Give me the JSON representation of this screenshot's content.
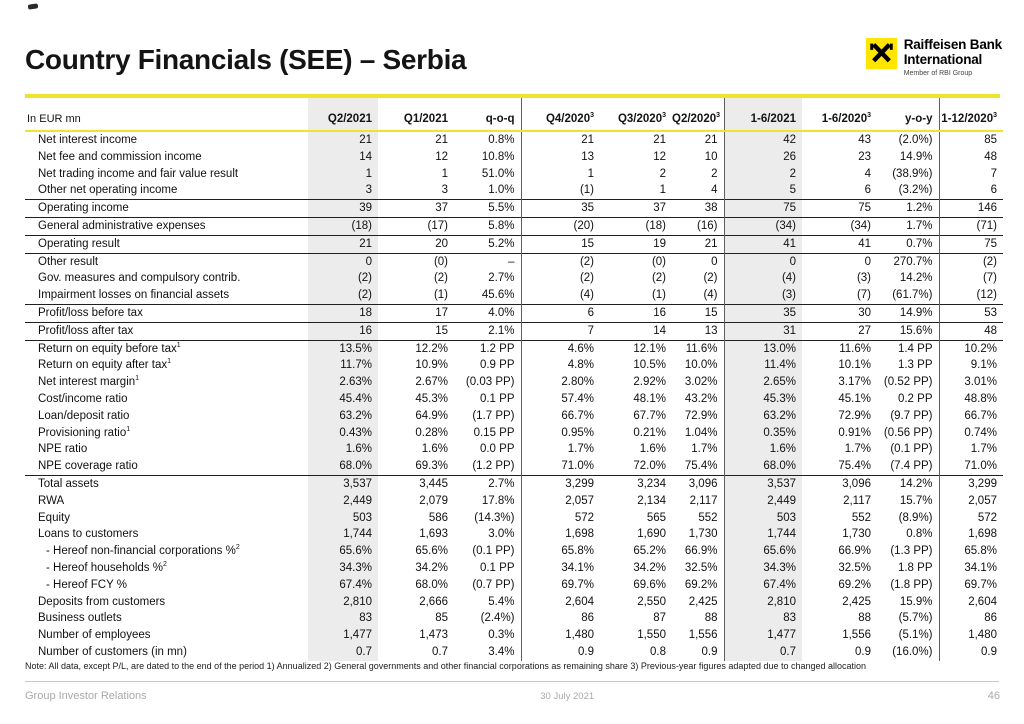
{
  "page": {
    "title": "Country Financials (SEE) – Serbia",
    "logo": {
      "line1": "Raiffeisen Bank",
      "line2": "International",
      "line3": "Member of RBI Group",
      "brand_yellow": "#FFE500"
    },
    "note": "Note: All data, except P/L, are dated to the end of the period 1) Annualized  2) General governments and other financial corporations as remaining share  3) Previous-year figures adapted due to changed allocation",
    "footer": {
      "left": "Group Investor Relations",
      "date": "30 July 2021",
      "page_number": "46"
    }
  },
  "colors": {
    "accent_yellow": "#EFE32E",
    "column_highlight_gray": "#ECECEC"
  },
  "table": {
    "unit_label": "In EUR mn",
    "columns": [
      {
        "label": "Q2/2021",
        "sup": ""
      },
      {
        "label": "Q1/2021",
        "sup": ""
      },
      {
        "label": "q-o-q",
        "sup": ""
      },
      {
        "label": "Q4/2020",
        "sup": "3"
      },
      {
        "label": "Q3/2020",
        "sup": "3"
      },
      {
        "label": "Q2/2020",
        "sup": "3"
      },
      {
        "label": "1-6/2021",
        "sup": ""
      },
      {
        "label": "1-6/2020",
        "sup": "3"
      },
      {
        "label": "y-o-y",
        "sup": ""
      },
      {
        "label": "1-12/2020",
        "sup": "3"
      }
    ],
    "rows": [
      {
        "label": "Net interest income",
        "values": [
          "21",
          "21",
          "0.8%",
          "21",
          "21",
          "21",
          "42",
          "43",
          "(2.0%)",
          "85"
        ]
      },
      {
        "label": "Net fee and commission income",
        "values": [
          "14",
          "12",
          "10.8%",
          "13",
          "12",
          "10",
          "26",
          "23",
          "14.9%",
          "48"
        ]
      },
      {
        "label": "Net trading income and fair value result",
        "values": [
          "1",
          "1",
          "51.0%",
          "1",
          "2",
          "2",
          "2",
          "4",
          "(38.9%)",
          "7"
        ]
      },
      {
        "label": "Other net operating income",
        "values": [
          "3",
          "3",
          "1.0%",
          "(1)",
          "1",
          "4",
          "5",
          "6",
          "(3.2%)",
          "6"
        ]
      },
      {
        "label": "Operating income",
        "bt": true,
        "values": [
          "39",
          "37",
          "5.5%",
          "35",
          "37",
          "38",
          "75",
          "75",
          "1.2%",
          "146"
        ]
      },
      {
        "label": "General administrative expenses",
        "bt": true,
        "values": [
          "(18)",
          "(17)",
          "5.8%",
          "(20)",
          "(18)",
          "(16)",
          "(34)",
          "(34)",
          "1.7%",
          "(71)"
        ]
      },
      {
        "label": "Operating result",
        "bt": true,
        "values": [
          "21",
          "20",
          "5.2%",
          "15",
          "19",
          "21",
          "41",
          "41",
          "0.7%",
          "75"
        ]
      },
      {
        "label": "Other result",
        "bt": true,
        "values": [
          "0",
          "(0)",
          "–",
          "(2)",
          "(0)",
          "0",
          "0",
          "0",
          "270.7%",
          "(2)"
        ]
      },
      {
        "label": "Gov. measures and compulsory contrib.",
        "values": [
          "(2)",
          "(2)",
          "2.7%",
          "(2)",
          "(2)",
          "(2)",
          "(4)",
          "(3)",
          "14.2%",
          "(7)"
        ]
      },
      {
        "label": "Impairment losses on financial assets",
        "values": [
          "(2)",
          "(1)",
          "45.6%",
          "(4)",
          "(1)",
          "(4)",
          "(3)",
          "(7)",
          "(61.7%)",
          "(12)"
        ]
      },
      {
        "label": "Profit/loss before tax",
        "bt": true,
        "values": [
          "18",
          "17",
          "4.0%",
          "6",
          "16",
          "15",
          "35",
          "30",
          "14.9%",
          "53"
        ]
      },
      {
        "label": "Profit/loss after tax",
        "bt": true,
        "values": [
          "16",
          "15",
          "2.1%",
          "7",
          "14",
          "13",
          "31",
          "27",
          "15.6%",
          "48"
        ]
      },
      {
        "label": "Return on equity before tax",
        "sup": "1",
        "bt": true,
        "values": [
          "13.5%",
          "12.2%",
          "1.2 PP",
          "4.6%",
          "12.1%",
          "11.6%",
          "13.0%",
          "11.6%",
          "1.4 PP",
          "10.2%"
        ]
      },
      {
        "label": "Return on equity after tax",
        "sup": "1",
        "values": [
          "11.7%",
          "10.9%",
          "0.9 PP",
          "4.8%",
          "10.5%",
          "10.0%",
          "11.4%",
          "10.1%",
          "1.3 PP",
          "9.1%"
        ]
      },
      {
        "label": "Net interest margin",
        "sup": "1",
        "values": [
          "2.63%",
          "2.67%",
          "(0.03 PP)",
          "2.80%",
          "2.92%",
          "3.02%",
          "2.65%",
          "3.17%",
          "(0.52 PP)",
          "3.01%"
        ]
      },
      {
        "label": "Cost/income ratio",
        "values": [
          "45.4%",
          "45.3%",
          "0.1 PP",
          "57.4%",
          "48.1%",
          "43.2%",
          "45.3%",
          "45.1%",
          "0.2 PP",
          "48.8%"
        ]
      },
      {
        "label": "Loan/deposit ratio",
        "values": [
          "63.2%",
          "64.9%",
          "(1.7 PP)",
          "66.7%",
          "67.7%",
          "72.9%",
          "63.2%",
          "72.9%",
          "(9.7 PP)",
          "66.7%"
        ]
      },
      {
        "label": "Provisioning ratio",
        "sup": "1",
        "values": [
          "0.43%",
          "0.28%",
          "0.15 PP",
          "0.95%",
          "0.21%",
          "1.04%",
          "0.35%",
          "0.91%",
          "(0.56 PP)",
          "0.74%"
        ]
      },
      {
        "label": "NPE ratio",
        "values": [
          "1.6%",
          "1.6%",
          "0.0 PP",
          "1.7%",
          "1.6%",
          "1.7%",
          "1.6%",
          "1.7%",
          "(0.1 PP)",
          "1.7%"
        ]
      },
      {
        "label": "NPE coverage ratio",
        "values": [
          "68.0%",
          "69.3%",
          "(1.2 PP)",
          "71.0%",
          "72.0%",
          "75.4%",
          "68.0%",
          "75.4%",
          "(7.4 PP)",
          "71.0%"
        ]
      },
      {
        "label": "Total assets",
        "bt": true,
        "values": [
          "3,537",
          "3,445",
          "2.7%",
          "3,299",
          "3,234",
          "3,096",
          "3,537",
          "3,096",
          "14.2%",
          "3,299"
        ]
      },
      {
        "label": "RWA",
        "values": [
          "2,449",
          "2,079",
          "17.8%",
          "2,057",
          "2,134",
          "2,117",
          "2,449",
          "2,117",
          "15.7%",
          "2,057"
        ]
      },
      {
        "label": "Equity",
        "values": [
          "503",
          "586",
          "(14.3%)",
          "572",
          "565",
          "552",
          "503",
          "552",
          "(8.9%)",
          "572"
        ]
      },
      {
        "label": "Loans to customers",
        "values": [
          "1,744",
          "1,693",
          "3.0%",
          "1,698",
          "1,690",
          "1,730",
          "1,744",
          "1,730",
          "0.8%",
          "1,698"
        ]
      },
      {
        "label": "- Hereof non-financial corporations %",
        "sup": "2",
        "indent": true,
        "values": [
          "65.6%",
          "65.6%",
          "(0.1 PP)",
          "65.8%",
          "65.2%",
          "66.9%",
          "65.6%",
          "66.9%",
          "(1.3 PP)",
          "65.8%"
        ]
      },
      {
        "label": "- Hereof households %",
        "sup": "2",
        "indent": true,
        "values": [
          "34.3%",
          "34.2%",
          "0.1 PP",
          "34.1%",
          "34.2%",
          "32.5%",
          "34.3%",
          "32.5%",
          "1.8 PP",
          "34.1%"
        ]
      },
      {
        "label": "- Hereof FCY %",
        "indent": true,
        "values": [
          "67.4%",
          "68.0%",
          "(0.7 PP)",
          "69.7%",
          "69.6%",
          "69.2%",
          "67.4%",
          "69.2%",
          "(1.8 PP)",
          "69.7%"
        ]
      },
      {
        "label": "Deposits from customers",
        "values": [
          "2,810",
          "2,666",
          "5.4%",
          "2,604",
          "2,550",
          "2,425",
          "2,810",
          "2,425",
          "15.9%",
          "2,604"
        ]
      },
      {
        "label": "Business outlets",
        "values": [
          "83",
          "85",
          "(2.4%)",
          "86",
          "87",
          "88",
          "83",
          "88",
          "(5.7%)",
          "86"
        ]
      },
      {
        "label": "Number of employees",
        "values": [
          "1,477",
          "1,473",
          "0.3%",
          "1,480",
          "1,550",
          "1,556",
          "1,477",
          "1,556",
          "(5.1%)",
          "1,480"
        ]
      },
      {
        "label": "Number of customers (in mn)",
        "values": [
          "0.7",
          "0.7",
          "3.4%",
          "0.9",
          "0.8",
          "0.9",
          "0.7",
          "0.9",
          "(16.0%)",
          "0.9"
        ]
      }
    ]
  }
}
